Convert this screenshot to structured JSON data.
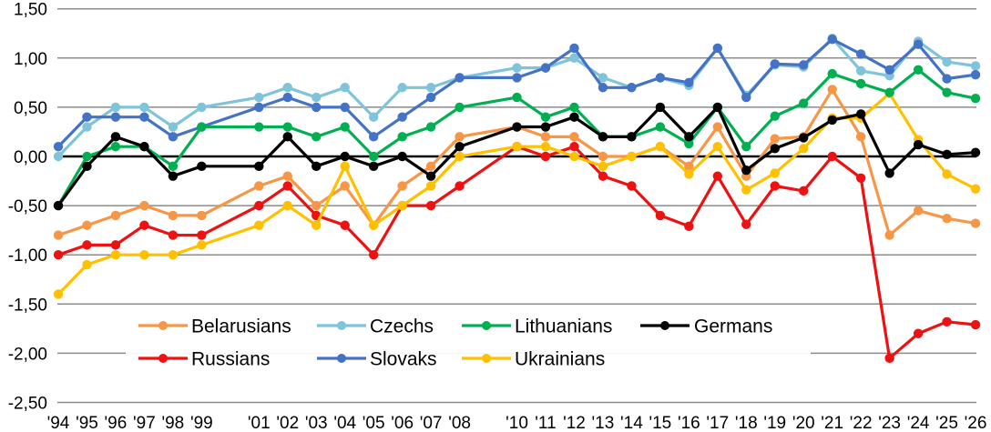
{
  "chart_data": {
    "type": "line",
    "title": "",
    "xlabel": "",
    "ylabel": "",
    "ylim": [
      -2.5,
      1.5
    ],
    "yticks": [
      "1,50",
      "1,00",
      "0,50",
      "0,00",
      "-0,50",
      "-1,00",
      "-1,50",
      "-2,00",
      "-2,50"
    ],
    "ytick_values": [
      1.5,
      1.0,
      0.5,
      0.0,
      -0.5,
      -1.0,
      -1.5,
      -2.0,
      -2.5
    ],
    "grid": true,
    "legend_position": "inside-bottom-left",
    "categories": [
      "'94",
      "'95",
      "'96",
      "'97",
      "'98",
      "'99",
      "",
      "'01",
      "'02",
      "'03",
      "'04",
      "'05",
      "'06",
      "'07",
      "'08",
      "",
      "'10",
      "'11",
      "'12",
      "'13",
      "'14",
      "'15",
      "'16",
      "'17",
      "'18",
      "'19",
      "'20",
      "'21",
      "'22",
      "'23",
      "'24",
      "'25",
      "'26"
    ],
    "series": [
      {
        "name": "Belarusians",
        "color": "#F79646",
        "values": [
          -0.8,
          -0.7,
          -0.6,
          -0.5,
          -0.6,
          -0.6,
          null,
          -0.3,
          -0.2,
          -0.5,
          -0.3,
          -0.7,
          -0.3,
          -0.1,
          0.2,
          null,
          0.3,
          0.2,
          0.2,
          0.0,
          0.0,
          0.1,
          -0.1,
          0.3,
          -0.2,
          0.18,
          0.2,
          0.68,
          0.2,
          -0.8,
          -0.55,
          -0.63,
          -0.68
        ]
      },
      {
        "name": "Czechs",
        "color": "#7EC4DA",
        "values": [
          0.0,
          0.3,
          0.5,
          0.5,
          0.3,
          0.5,
          null,
          0.6,
          0.7,
          0.6,
          0.7,
          0.4,
          0.7,
          0.7,
          0.8,
          null,
          0.9,
          0.9,
          1.0,
          0.8,
          0.7,
          0.8,
          0.72,
          1.1,
          0.62,
          0.93,
          0.91,
          1.2,
          0.87,
          0.82,
          1.17,
          0.96,
          0.92
        ]
      },
      {
        "name": "Lithuanians",
        "color": "#00B050",
        "values": [
          -0.5,
          0.0,
          0.1,
          0.1,
          -0.1,
          0.3,
          null,
          0.3,
          0.3,
          0.2,
          0.3,
          0.0,
          0.2,
          0.3,
          0.5,
          null,
          0.6,
          0.4,
          0.5,
          0.2,
          0.2,
          0.3,
          0.13,
          0.5,
          0.1,
          0.41,
          0.54,
          0.84,
          0.74,
          0.65,
          0.88,
          0.65,
          0.59
        ]
      },
      {
        "name": "Germans",
        "color": "#000000",
        "values": [
          -0.5,
          -0.1,
          0.2,
          0.1,
          -0.2,
          -0.1,
          null,
          -0.1,
          0.2,
          -0.1,
          0.0,
          -0.1,
          0.0,
          -0.2,
          0.1,
          null,
          0.3,
          0.3,
          0.4,
          0.2,
          0.2,
          0.5,
          0.2,
          0.5,
          -0.14,
          0.08,
          0.19,
          0.37,
          0.43,
          -0.17,
          0.12,
          0.02,
          0.04
        ]
      },
      {
        "name": "Russians",
        "color": "#EE1111",
        "values": [
          -1.0,
          -0.9,
          -0.9,
          -0.7,
          -0.8,
          -0.8,
          null,
          -0.5,
          -0.3,
          -0.6,
          -0.7,
          -1.0,
          -0.5,
          -0.5,
          -0.3,
          null,
          0.1,
          0.0,
          0.1,
          -0.2,
          -0.3,
          -0.6,
          -0.71,
          -0.2,
          -0.69,
          -0.3,
          -0.35,
          0.0,
          -0.22,
          -2.05,
          -1.8,
          -1.68,
          -1.71
        ]
      },
      {
        "name": "Slovaks",
        "color": "#4472C4",
        "values": [
          0.1,
          0.4,
          0.4,
          0.4,
          0.2,
          0.3,
          null,
          0.5,
          0.6,
          0.5,
          0.5,
          0.2,
          0.4,
          0.6,
          0.8,
          null,
          0.8,
          0.9,
          1.1,
          0.7,
          0.7,
          0.8,
          0.75,
          1.1,
          0.6,
          0.94,
          0.93,
          1.19,
          1.04,
          0.88,
          1.14,
          0.79,
          0.83
        ]
      },
      {
        "name": "Ukrainians",
        "color": "#FFC000",
        "values": [
          -1.4,
          -1.1,
          -1.0,
          -1.0,
          -1.0,
          -0.9,
          null,
          -0.7,
          -0.5,
          -0.7,
          -0.1,
          -0.7,
          -0.5,
          -0.3,
          0.0,
          null,
          0.1,
          0.1,
          0.0,
          -0.1,
          0.0,
          0.1,
          -0.18,
          0.1,
          -0.34,
          -0.17,
          0.08,
          0.39,
          0.39,
          0.64,
          0.17,
          -0.18,
          -0.33
        ]
      }
    ],
    "legend": {
      "rows": [
        [
          "Belarusians",
          "Czechs",
          "Lithuanians",
          "Germans"
        ],
        [
          "Russians",
          "Slovaks",
          "Ukrainians"
        ]
      ]
    }
  }
}
